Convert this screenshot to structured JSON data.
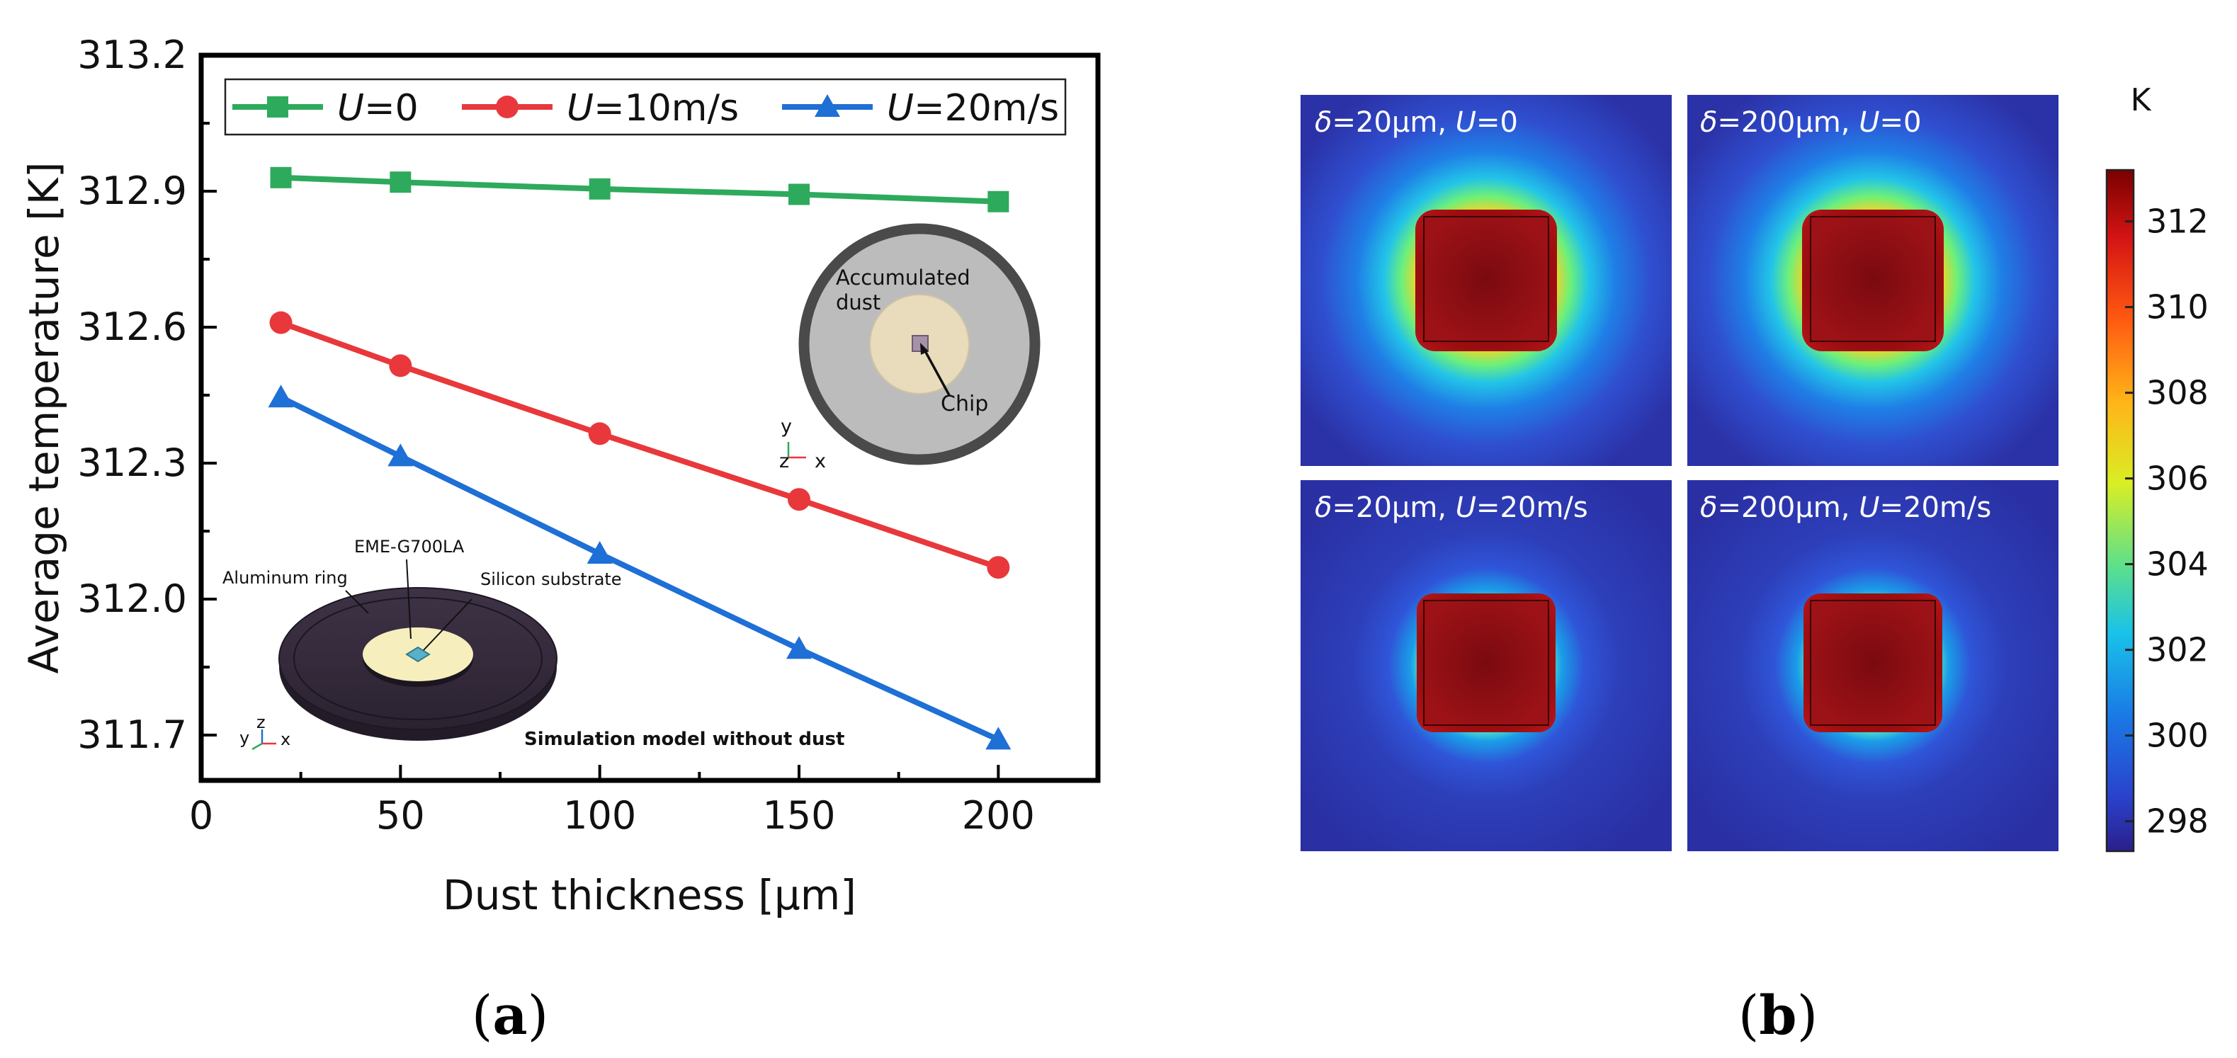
{
  "chart_data": [
    {
      "type": "line",
      "panel": "a",
      "xlabel": "Dust thickness [μm]",
      "ylabel": "Average temperature [K]",
      "xlim": [
        0,
        225
      ],
      "ylim": [
        311.6,
        313.2
      ],
      "x_ticks": [
        "0",
        "50",
        "100",
        "150",
        "200"
      ],
      "y_ticks": [
        "311.7",
        "312.0",
        "312.3",
        "312.6",
        "312.9",
        "313.2"
      ],
      "x": [
        20,
        50,
        100,
        150,
        200
      ],
      "series": [
        {
          "name": "U=0",
          "var": "U",
          "rest": "=0",
          "color": "#2eaa5c",
          "marker": "square",
          "values": [
            312.93,
            312.92,
            312.905,
            312.893,
            312.877
          ]
        },
        {
          "name": "U=10m/s",
          "var": "U",
          "rest": "=10m/s",
          "color": "#e8383b",
          "marker": "circle",
          "values": [
            312.61,
            312.515,
            312.365,
            312.22,
            312.07
          ]
        },
        {
          "name": "U=20m/s",
          "var": "U",
          "rest": "=20m/s",
          "color": "#1e6fd6",
          "marker": "triangle",
          "values": [
            312.445,
            312.315,
            312.1,
            311.89,
            311.69
          ]
        }
      ],
      "legend_position": "top",
      "insets": {
        "dust_model": {
          "label_line1": "Accumulated",
          "label_line2": "dust",
          "chip_label": "Chip",
          "axis_y": "y",
          "axis_z": "z",
          "axis_x": "x"
        },
        "simulation_model": {
          "ring_label": "Aluminum ring",
          "emc_label": "EME-G700LA",
          "substrate_label": "Silicon substrate",
          "caption": "Simulation model without dust",
          "axis_y": "y",
          "axis_z": "z",
          "axis_x": "x"
        }
      }
    },
    {
      "type": "heatmap",
      "panel": "b",
      "colorbar_unit": "K",
      "colorbar_range": [
        297.3,
        313.2
      ],
      "colorbar_ticks": [
        "312",
        "310",
        "308",
        "306",
        "304",
        "302",
        "300",
        "298"
      ],
      "panels": [
        {
          "thickness": "=20μm, ",
          "velocity": "=0"
        },
        {
          "thickness": "=200μm, ",
          "velocity": "=0"
        },
        {
          "thickness": "=20μm, ",
          "velocity": "=20m/s"
        },
        {
          "thickness": "=200μm, ",
          "velocity": "=20m/s"
        }
      ],
      "delta_symbol": "δ",
      "velocity_symbol": "U"
    }
  ],
  "captions": {
    "a": "a",
    "b": "b"
  },
  "colors": {
    "hot": "#8e0a0d",
    "cold": "#2a33a8",
    "axis": "#000000"
  }
}
